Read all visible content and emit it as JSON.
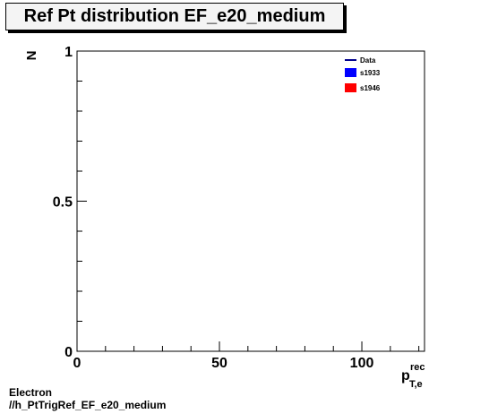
{
  "chart_data": {
    "type": "line",
    "title": "Ref Pt distribution EF_e20_medium",
    "ylabel": "N",
    "xlabel": {
      "base": "p",
      "sup": "rec",
      "sub": "T,e"
    },
    "xlim": [
      0,
      122
    ],
    "ylim": [
      0,
      1
    ],
    "x_ticks": [
      0,
      50,
      100
    ],
    "x_tick_labels": [
      "0",
      "50",
      "100"
    ],
    "y_ticks": [
      0,
      0.5,
      1
    ],
    "y_tick_labels": [
      "0",
      "0.5",
      "1"
    ],
    "grid": false,
    "legend_position": "top-right",
    "series": [
      {
        "name": "Data",
        "style": "line",
        "color": "#00008b",
        "values": []
      },
      {
        "name": "s1933",
        "style": "fill",
        "color": "#0000ff",
        "values": []
      },
      {
        "name": "s1946",
        "style": "fill",
        "color": "#ff0000",
        "values": []
      }
    ]
  },
  "footer": {
    "line1": "Electron",
    "line2": "//h_PtTrigRef_EF_e20_medium"
  }
}
